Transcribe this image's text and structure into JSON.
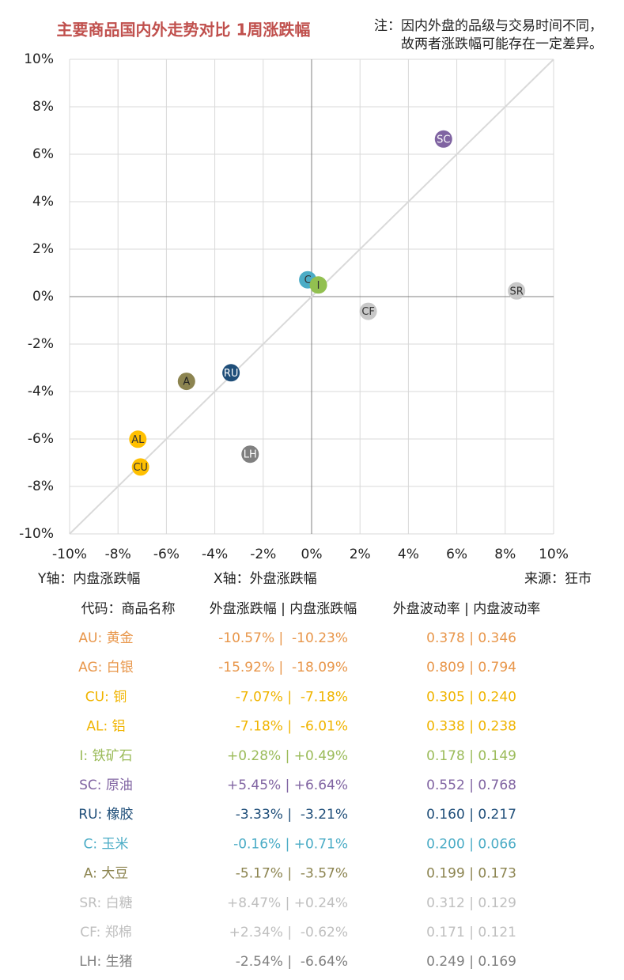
{
  "chart_data": {
    "type": "scatter",
    "title": "主要商品国内外走势对比 1周涨跌幅",
    "note": [
      "注：因内外盘的品级与交易时间不同，",
      "故两者涨跌幅可能存在一定差异。"
    ],
    "y_label": "Y轴：内盘涨跌幅",
    "x_label": "X轴：外盘涨跌幅",
    "source": "来源：狂市",
    "labels": [
      "SC",
      "C",
      "I",
      "SR",
      "CF",
      "RU",
      "A",
      "AL",
      "CU",
      "LH"
    ],
    "x": [
      5.45,
      -0.16,
      0.28,
      8.47,
      2.34,
      -3.33,
      -5.17,
      -7.18,
      -7.07,
      -2.54
    ],
    "values": [
      6.64,
      0.71,
      0.49,
      0.24,
      -0.62,
      -3.21,
      -3.57,
      -6.01,
      -7.18,
      -6.64
    ],
    "colors": [
      "#8064a2",
      "#4bacc6",
      "#92c050",
      "#c8c8c8",
      "#c8c8c8",
      "#1f4e79",
      "#8c8450",
      "#ffc000",
      "#ffc000",
      "#808080"
    ],
    "label_colors": [
      "#ffffff",
      "#333333",
      "#333333",
      "#333333",
      "#333333",
      "#ffffff",
      "#222222",
      "#333333",
      "#333333",
      "#ffffff"
    ],
    "xlim": [
      -10,
      10
    ],
    "ylim": [
      -10,
      10
    ],
    "xticks": [
      {
        "value": -10,
        "label": "-10%"
      },
      {
        "value": -8,
        "label": "-8%"
      },
      {
        "value": -6,
        "label": "-6%"
      },
      {
        "value": -4,
        "label": "-4%"
      },
      {
        "value": -2,
        "label": "-2%"
      },
      {
        "value": 0,
        "label": "0%"
      },
      {
        "value": 2,
        "label": "2%"
      },
      {
        "value": 4,
        "label": "4%"
      },
      {
        "value": 6,
        "label": "6%"
      },
      {
        "value": 8,
        "label": "8%"
      },
      {
        "value": 10,
        "label": "10%"
      }
    ],
    "yticks": [
      {
        "value": -10,
        "label": "-10%"
      },
      {
        "value": -8,
        "label": "-8%"
      },
      {
        "value": -6,
        "label": "-6%"
      },
      {
        "value": -4,
        "label": "-4%"
      },
      {
        "value": -2,
        "label": "-2%"
      },
      {
        "value": 0,
        "label": "0%"
      },
      {
        "value": 2,
        "label": "2%"
      },
      {
        "value": 4,
        "label": "4%"
      },
      {
        "value": 6,
        "label": "6%"
      },
      {
        "value": 8,
        "label": "8%"
      },
      {
        "value": 10,
        "label": "10%"
      }
    ],
    "grid": true
  },
  "table": {
    "header": [
      "代码：商品名称",
      "外盘涨跌幅 | 内盘涨跌幅",
      "外盘波动率 | 内盘波动率"
    ],
    "rows": [
      {
        "name": "AU: 黄金",
        "change": "-10.57% |  -10.23%",
        "volatility": "0.378 | 0.346",
        "color": "#e8964a"
      },
      {
        "name": "AG: 白银",
        "change": "-15.92% |  -18.09%",
        "volatility": "0.809 | 0.794",
        "color": "#e8964a"
      },
      {
        "name": "CU: 铜",
        "change": "-7.07% |  -7.18%",
        "volatility": "0.305 | 0.240",
        "color": "#f0b400"
      },
      {
        "name": "AL: 铝",
        "change": "-7.18% |  -6.01%",
        "volatility": "0.338 | 0.238",
        "color": "#f0b400"
      },
      {
        "name": "I: 铁矿石",
        "change": "+0.28% | +0.49%",
        "volatility": "0.178 | 0.149",
        "color": "#9bbb59"
      },
      {
        "name": "SC: 原油",
        "change": "+5.45% | +6.64%",
        "volatility": "0.552 | 0.768",
        "color": "#8064a2"
      },
      {
        "name": "RU: 橡胶",
        "change": "-3.33% |  -3.21%",
        "volatility": "0.160 | 0.217",
        "color": "#1f4e79"
      },
      {
        "name": "C: 玉米",
        "change": "-0.16% | +0.71%",
        "volatility": "0.200 | 0.066",
        "color": "#4bacc6"
      },
      {
        "name": "A: 大豆",
        "change": "-5.17% |  -3.57%",
        "volatility": "0.199 | 0.173",
        "color": "#8c8450"
      },
      {
        "name": "SR: 白糖",
        "change": "+8.47% | +0.24%",
        "volatility": "0.312 | 0.129",
        "color": "#bfbfbf"
      },
      {
        "name": "CF: 郑棉",
        "change": "+2.34% |  -0.62%",
        "volatility": "0.171 | 0.121",
        "color": "#bfbfbf"
      },
      {
        "name": "LH: 生猪",
        "change": "-2.54% |  -6.64%",
        "volatility": "0.249 | 0.169",
        "color": "#7f7f7f"
      }
    ]
  }
}
